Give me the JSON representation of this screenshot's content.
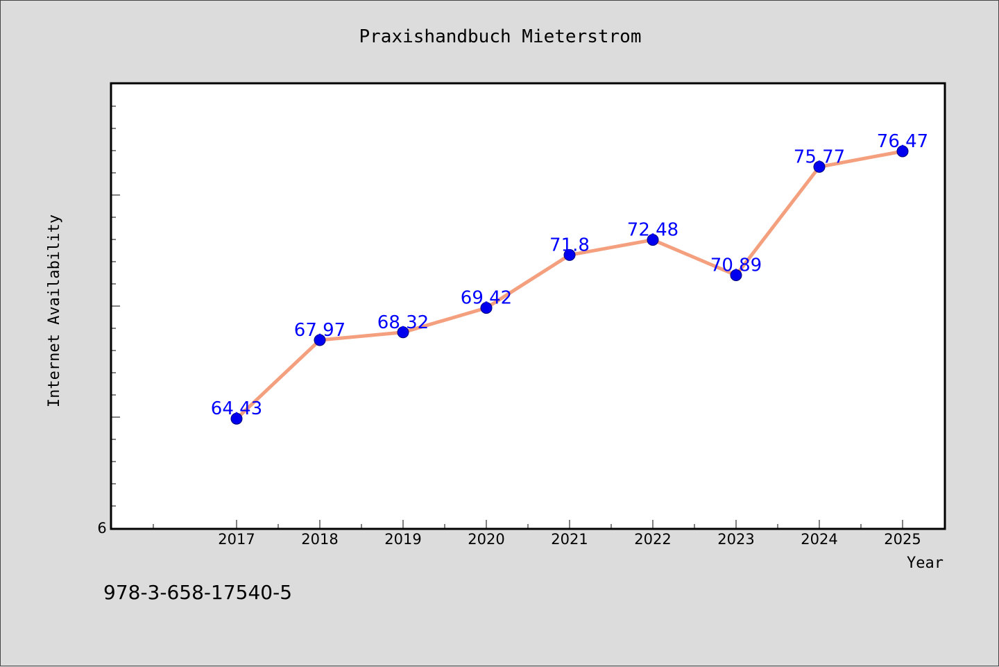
{
  "chart_data": {
    "type": "line",
    "title": "Praxishandbuch Mieterstrom",
    "xlabel": "Year",
    "ylabel": "Internet Availability",
    "categories": [
      "2017",
      "2018",
      "2019",
      "2020",
      "2021",
      "2022",
      "2023",
      "2024",
      "2025"
    ],
    "values": [
      64.43,
      67.97,
      68.32,
      69.42,
      71.8,
      72.48,
      70.89,
      75.77,
      76.47
    ],
    "data_labels": [
      "64.43",
      "67.97",
      "68.32",
      "69.42",
      "71.8",
      "72.48",
      "70.89",
      "75.77",
      "76.47"
    ],
    "y_tick_label": "6",
    "ylim": [
      59.5,
      79.5
    ],
    "line_color": "#f4a07f",
    "marker_color": "#0000ee",
    "label_color": "#0000ff",
    "grid": false,
    "legend": "none"
  },
  "footer": {
    "isbn": "978-3-658-17540-5"
  }
}
